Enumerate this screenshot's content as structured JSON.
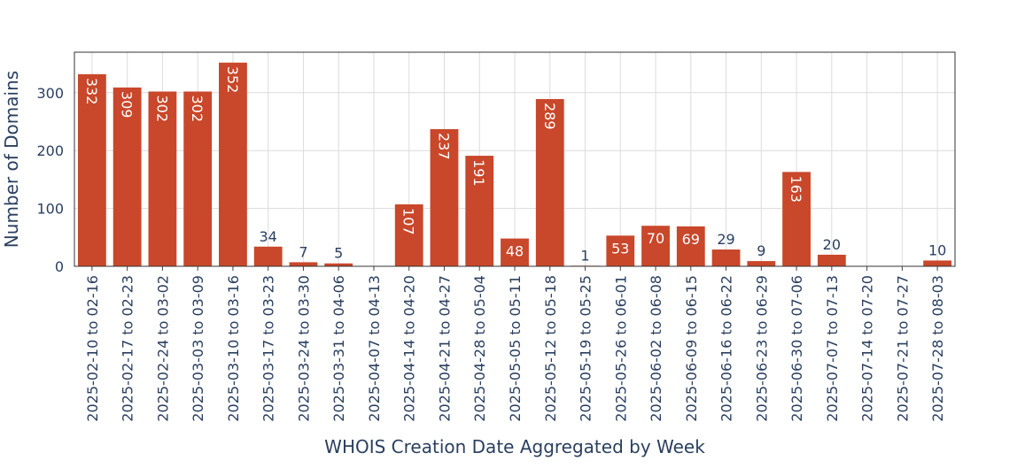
{
  "chart_data": {
    "type": "bar",
    "x_label": "WHOIS Creation Date Aggregated by Week",
    "y_label": "Number of Domains",
    "categories": [
      "2025-02-10 to 02-16",
      "2025-02-17 to 02-23",
      "2025-02-24 to 03-02",
      "2025-03-03 to 03-09",
      "2025-03-10 to 03-16",
      "2025-03-17 to 03-23",
      "2025-03-24 to 03-30",
      "2025-03-31 to 04-06",
      "2025-04-07 to 04-13",
      "2025-04-14 to 04-20",
      "2025-04-21 to 04-27",
      "2025-04-28 to 05-04",
      "2025-05-05 to 05-11",
      "2025-05-12 to 05-18",
      "2025-05-19 to 05-25",
      "2025-05-26 to 06-01",
      "2025-06-02 to 06-08",
      "2025-06-09 to 06-15",
      "2025-06-16 to 06-22",
      "2025-06-23 to 06-29",
      "2025-06-30 to 07-06",
      "2025-07-07 to 07-13",
      "2025-07-14 to 07-20",
      "2025-07-21 to 07-27",
      "2025-07-28 to 08-03"
    ],
    "values": [
      332,
      309,
      302,
      302,
      352,
      34,
      7,
      5,
      null,
      107,
      237,
      191,
      48,
      289,
      1,
      53,
      70,
      69,
      29,
      9,
      163,
      20,
      null,
      null,
      10
    ],
    "color": "#c9472a",
    "ylim": [
      0,
      370
    ],
    "yticks": [
      0,
      100,
      200,
      300
    ],
    "grid": true
  }
}
